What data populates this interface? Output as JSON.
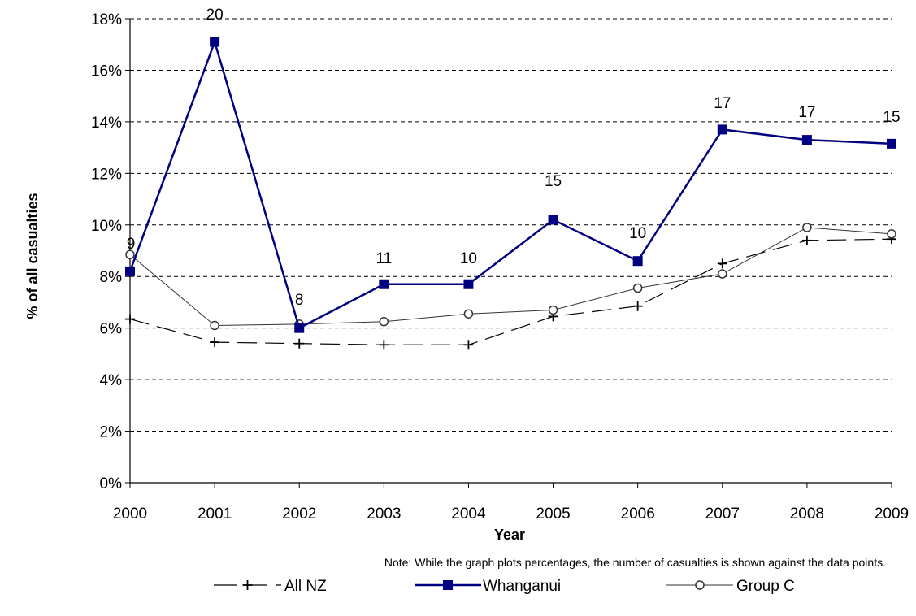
{
  "chart_data": {
    "type": "line",
    "xlabel": "Year",
    "ylabel": "% of all casualties",
    "x": [
      "2000",
      "2001",
      "2002",
      "2003",
      "2004",
      "2005",
      "2006",
      "2007",
      "2008",
      "2009"
    ],
    "ylim": [
      0,
      18
    ],
    "yticks": [
      "0%",
      "2%",
      "4%",
      "6%",
      "8%",
      "10%",
      "12%",
      "14%",
      "16%",
      "18%"
    ],
    "grid": "horizontal-dashed",
    "legend_position": "bottom",
    "note": "Note: While the graph plots percentages, the number of casualties is shown against the data points.",
    "series": [
      {
        "name": "All NZ",
        "values": [
          6.35,
          5.45,
          5.4,
          5.35,
          5.35,
          6.45,
          6.85,
          8.5,
          9.4,
          9.45
        ],
        "marker": "plus",
        "line_style": "dashed",
        "color": "#000000"
      },
      {
        "name": "Whanganui",
        "values": [
          8.2,
          17.1,
          6.0,
          7.7,
          7.7,
          10.2,
          8.6,
          13.7,
          13.3,
          13.15
        ],
        "marker": "square",
        "line_style": "solid",
        "color": "#000080",
        "labels": [
          "9",
          "20",
          "8",
          "11",
          "10",
          "15",
          "10",
          "17",
          "17",
          "15"
        ]
      },
      {
        "name": "Group C",
        "values": [
          8.85,
          6.1,
          6.15,
          6.25,
          6.55,
          6.7,
          7.55,
          8.1,
          9.9,
          9.65
        ],
        "marker": "circle",
        "line_style": "solid",
        "color": "#000000"
      }
    ]
  }
}
